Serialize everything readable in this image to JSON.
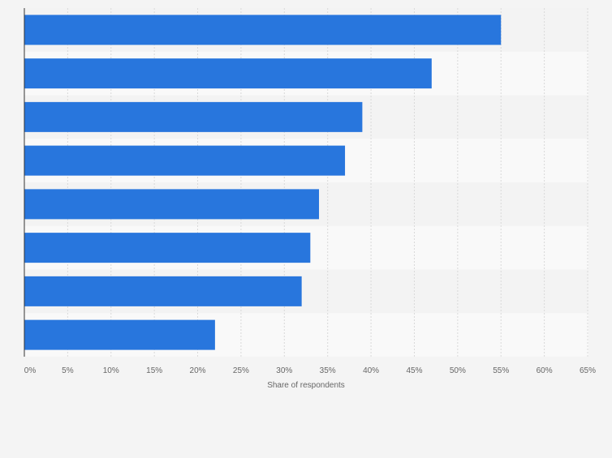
{
  "chart_data": {
    "type": "bar",
    "orientation": "horizontal",
    "categories": [
      "",
      "",
      "",
      "",
      "",
      "",
      "",
      ""
    ],
    "values": [
      55,
      47,
      39,
      37,
      34,
      33,
      32,
      22
    ],
    "xlabel": "Share of respondents",
    "ylabel": "",
    "xlim": [
      0,
      65
    ],
    "x_ticks": [
      "0%",
      "5%",
      "10%",
      "15%",
      "20%",
      "25%",
      "30%",
      "35%",
      "40%",
      "45%",
      "50%",
      "55%",
      "60%",
      "65%"
    ],
    "grid": true,
    "legend": "none",
    "colors": {
      "bar": "#2876dd",
      "band_dark": "#f3f3f3",
      "band_light": "#f9f9f9",
      "grid": "#d9d9d9",
      "axis": "#333333",
      "tick_text": "#666666"
    }
  }
}
